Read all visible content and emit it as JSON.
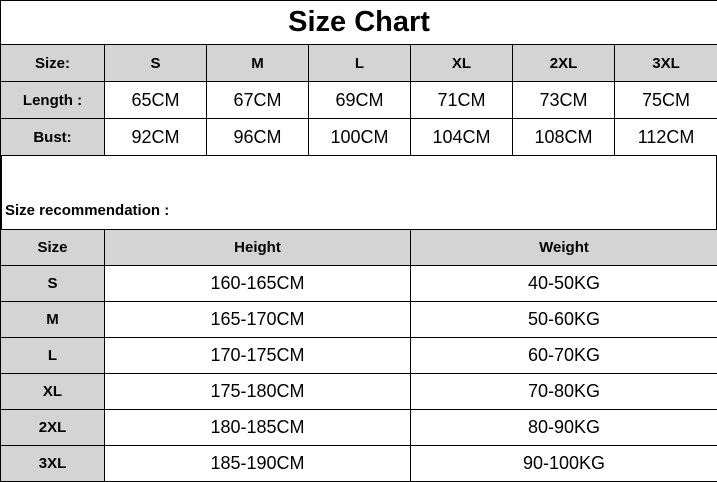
{
  "title": "Size Chart",
  "size_chart": {
    "header": [
      "Size:",
      "S",
      "M",
      "L",
      "XL",
      "2XL",
      "3XL"
    ],
    "rows": [
      [
        "Length :",
        "65CM",
        "67CM",
        "69CM",
        "71CM",
        "73CM",
        "75CM"
      ],
      [
        "Bust:",
        "92CM",
        "96CM",
        "100CM",
        "104CM",
        "108CM",
        "112CM"
      ]
    ]
  },
  "recommendation": {
    "label": "Size recommendation :",
    "header": [
      "Size",
      "Height",
      "Weight"
    ],
    "rows": [
      [
        "S",
        "160-165CM",
        "40-50KG"
      ],
      [
        "M",
        "165-170CM",
        "50-60KG"
      ],
      [
        "L",
        "170-175CM",
        "60-70KG"
      ],
      [
        "XL",
        "175-180CM",
        "70-80KG"
      ],
      [
        "2XL",
        "180-185CM",
        "80-90KG"
      ],
      [
        "3XL",
        "185-190CM",
        "90-100KG"
      ]
    ]
  },
  "colors": {
    "header_bg": "#d4d4d4",
    "border": "#000000"
  }
}
